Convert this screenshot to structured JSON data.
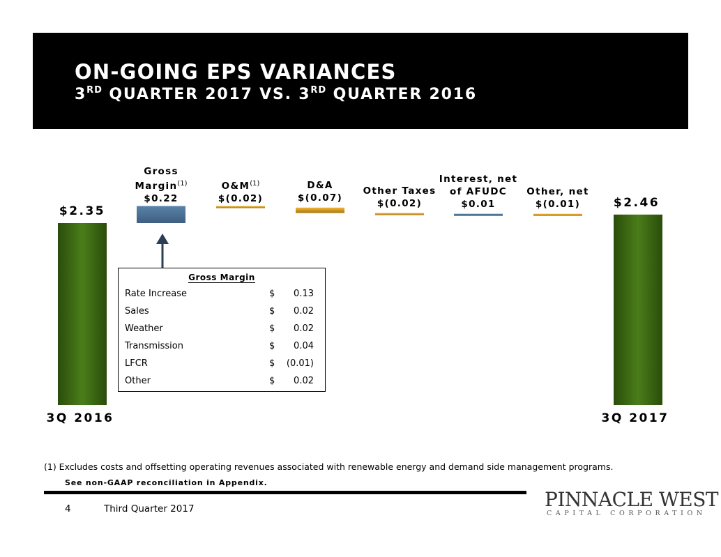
{
  "header": {
    "title": "ON-GOING EPS VARIANCES",
    "subtitle_prefix_1": "3",
    "subtitle_sup_1": "RD",
    "subtitle_middle": " QUARTER 2017 VS. 3",
    "subtitle_sup_2": "RD",
    "subtitle_suffix": " QUARTER 2016"
  },
  "chart_data": {
    "type": "bar",
    "subtype": "waterfall",
    "title": "On-going EPS Variances",
    "start": {
      "label": "3Q 2016",
      "value": 2.35,
      "value_label": "$2.35"
    },
    "end": {
      "label": "3Q 2017",
      "value": 2.46,
      "value_label": "$2.46"
    },
    "steps": [
      {
        "name_lines": [
          "Gross",
          "Margin"
        ],
        "superscript": "(1)",
        "value": 0.22,
        "value_label": "$0.22"
      },
      {
        "name_lines": [
          "O&M"
        ],
        "superscript": "(1)",
        "value": -0.02,
        "value_label": "$(0.02)"
      },
      {
        "name_lines": [
          "D&A"
        ],
        "superscript": "",
        "value": -0.07,
        "value_label": "$(0.07)"
      },
      {
        "name_lines": [
          "Other Taxes"
        ],
        "superscript": "",
        "value": -0.02,
        "value_label": "$(0.02)"
      },
      {
        "name_lines": [
          "Interest, net",
          "of AFUDC"
        ],
        "superscript": "",
        "value": 0.01,
        "value_label": "$0.01"
      },
      {
        "name_lines": [
          "Other, net"
        ],
        "superscript": "",
        "value": -0.01,
        "value_label": "$(0.01)"
      }
    ],
    "colors": {
      "total": "#3d6b11",
      "increase": "#4a6f94",
      "decrease": "#d79a1f"
    },
    "note_box": {
      "title": "Gross Margin",
      "rows": [
        {
          "name": "Rate Increase",
          "dollar": "$",
          "value": "0.13"
        },
        {
          "name": "Sales",
          "dollar": "$",
          "value": "0.02"
        },
        {
          "name": "Weather",
          "dollar": "$",
          "value": "0.02"
        },
        {
          "name": "Transmission",
          "dollar": "$",
          "value": "0.04"
        },
        {
          "name": "LFCR",
          "dollar": "$",
          "value": "(0.01)"
        },
        {
          "name": "Other",
          "dollar": "$",
          "value": "0.02"
        }
      ]
    }
  },
  "footer": {
    "footnote": "(1)  Excludes costs and offsetting operating revenues associated with renewable energy and demand side management programs.",
    "non_gaap": "See non-GAAP reconciliation in Appendix.",
    "page_number": "4",
    "page_text": "Third Quarter 2017",
    "logo_name": "PINNACLE WEST",
    "logo_sub": "CAPITAL CORPORATION"
  }
}
